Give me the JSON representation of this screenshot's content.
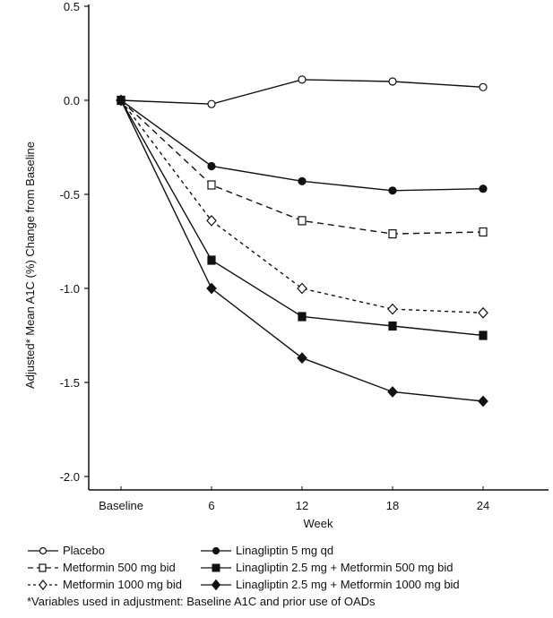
{
  "chart_data": {
    "type": "line",
    "title": "",
    "xlabel": "Week",
    "ylabel": "Adjusted* Mean A1C (%) Change from Baseline",
    "x": [
      "Baseline",
      "6",
      "12",
      "18",
      "24"
    ],
    "x_values": [
      0,
      6,
      12,
      18,
      24
    ],
    "ylim": [
      -2.0,
      0.5
    ],
    "yticks": [
      "0.5",
      "0.0",
      "-0.5",
      "-1.0",
      "-1.5",
      "-2.0"
    ],
    "ytick_values": [
      0.5,
      0.0,
      -0.5,
      -1.0,
      -1.5,
      -2.0
    ],
    "grid": false,
    "legend_position": "bottom",
    "series": [
      {
        "name": "Placebo",
        "marker": "circle-open",
        "line": "solid",
        "values": [
          0.0,
          -0.02,
          0.11,
          0.1,
          0.07
        ]
      },
      {
        "name": "Metformin 500 mg bid",
        "marker": "square-open",
        "line": "dashed",
        "values": [
          0.0,
          -0.45,
          -0.64,
          -0.71,
          -0.7
        ]
      },
      {
        "name": "Metformin 1000 mg bid",
        "marker": "diamond-open",
        "line": "dashed-short",
        "values": [
          0.0,
          -0.64,
          -1.0,
          -1.11,
          -1.13
        ]
      },
      {
        "name": "Linagliptin 5 mg qd",
        "marker": "circle-filled",
        "line": "solid",
        "values": [
          0.0,
          -0.35,
          -0.43,
          -0.48,
          -0.47
        ]
      },
      {
        "name": "Linagliptin 2.5 mg + Metformin 500 mg bid",
        "marker": "square-filled",
        "line": "solid",
        "values": [
          0.0,
          -0.85,
          -1.15,
          -1.2,
          -1.25
        ]
      },
      {
        "name": "Linagliptin 2.5 mg + Metformin 1000 mg bid",
        "marker": "diamond-filled",
        "line": "solid",
        "values": [
          0.0,
          -1.0,
          -1.37,
          -1.55,
          -1.6
        ]
      }
    ],
    "colors": {
      "line": "#111111",
      "marker_fill_open": "#ffffff",
      "marker_fill_filled": "#111111"
    }
  },
  "footnote": "*Variables used in adjustment: Baseline A1C and prior use of OADs"
}
